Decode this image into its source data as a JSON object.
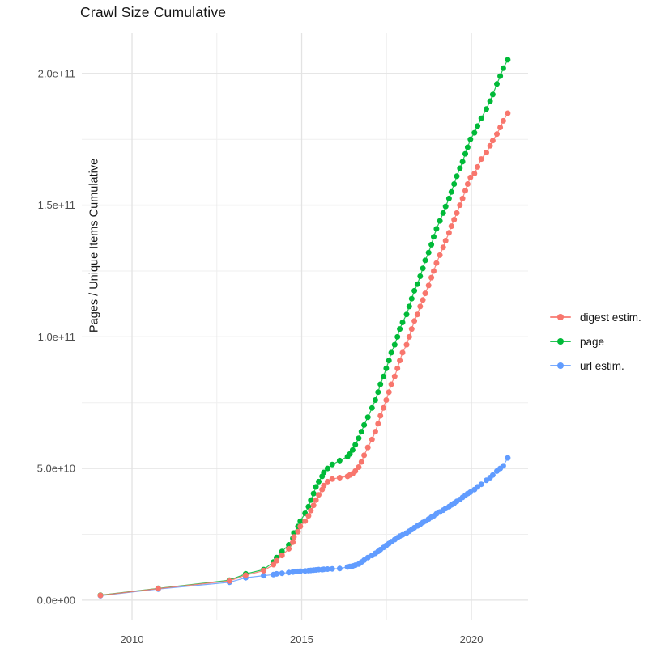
{
  "chart_data": {
    "type": "scatter",
    "title": "Crawl Size Cumulative",
    "xlabel": "",
    "ylabel": "Pages / Unique Items Cumulative",
    "grid": true,
    "legend_position": "right",
    "x_domain": [
      2008.52,
      2021.67
    ],
    "y_domain_e9": [
      -7.4,
      215.3
    ],
    "x_ticks": [
      {
        "value": 2010,
        "label": "2010"
      },
      {
        "value": 2015,
        "label": "2015"
      },
      {
        "value": 2020,
        "label": "2020"
      }
    ],
    "x_minor_gridlines": [
      2012.5,
      2017.5
    ],
    "y_ticks": [
      {
        "value_e9": 0,
        "label": "0.0e+00"
      },
      {
        "value_e9": 50,
        "label": "5.0e+10"
      },
      {
        "value_e9": 100,
        "label": "1.0e+11"
      },
      {
        "value_e9": 150,
        "label": "1.5e+11"
      },
      {
        "value_e9": 200,
        "label": "2.0e+11"
      }
    ],
    "y_minor_gridlines_e9": [
      25,
      75,
      125,
      175
    ],
    "y_value_unit": "1e9",
    "x": [
      2009.07,
      2010.77,
      2012.87,
      2013.35,
      2013.88,
      2014.17,
      2014.26,
      2014.42,
      2014.62,
      2014.74,
      2014.77,
      2014.89,
      2014.96,
      2015.1,
      2015.2,
      2015.27,
      2015.35,
      2015.42,
      2015.5,
      2015.6,
      2015.65,
      2015.76,
      2015.9,
      2016.12,
      2016.35,
      2016.42,
      2016.5,
      2016.58,
      2016.68,
      2016.76,
      2016.84,
      2016.95,
      2017.07,
      2017.17,
      2017.25,
      2017.32,
      2017.41,
      2017.49,
      2017.57,
      2017.64,
      2017.74,
      2017.82,
      2017.89,
      2017.97,
      2018.09,
      2018.17,
      2018.24,
      2018.32,
      2018.41,
      2018.49,
      2018.57,
      2018.64,
      2018.74,
      2018.82,
      2018.89,
      2018.97,
      2019.07,
      2019.17,
      2019.24,
      2019.34,
      2019.41,
      2019.49,
      2019.57,
      2019.66,
      2019.74,
      2019.82,
      2019.89,
      2019.97,
      2020.09,
      2020.18,
      2020.29,
      2020.44,
      2020.55,
      2020.63,
      2020.75,
      2020.85,
      2020.94,
      2021.07
    ],
    "series": [
      {
        "name": "digest estim.",
        "color": "#F8766D",
        "values_e9": [
          1.8,
          4.4,
          7.3,
          9.5,
          11.2,
          13.5,
          15,
          17,
          19.5,
          22,
          24,
          26,
          28,
          30,
          32,
          34,
          36,
          38,
          40,
          42,
          43.5,
          45,
          46,
          46.5,
          47,
          47.5,
          48,
          49,
          50.5,
          52.5,
          55,
          58,
          61,
          64,
          67,
          70,
          73,
          76,
          79,
          82,
          85,
          88,
          91,
          94,
          97,
          100,
          103,
          106,
          108.5,
          111.5,
          114,
          116.5,
          119.5,
          122.5,
          125,
          128,
          131,
          134,
          136.5,
          139.5,
          142,
          144.5,
          147,
          150,
          152.5,
          155.5,
          158,
          160.5,
          162,
          164.5,
          167.5,
          170,
          172.5,
          174.5,
          177,
          179.5,
          182,
          184.9
        ]
      },
      {
        "name": "page",
        "color": "#00BA38",
        "values_e9": [
          1.9,
          4.5,
          7.6,
          10,
          11.6,
          14.5,
          16.2,
          18.5,
          21,
          23.5,
          25.5,
          28,
          30,
          33,
          35.5,
          38,
          40.5,
          43,
          45,
          47,
          48.5,
          50,
          51.5,
          53,
          54.5,
          55.5,
          57,
          59,
          61.5,
          64,
          66.5,
          69.5,
          73,
          76,
          79,
          82,
          85,
          88,
          91,
          94,
          97,
          100,
          103,
          105.5,
          108.5,
          111.5,
          114.5,
          117.5,
          120,
          123,
          126,
          129,
          132,
          135,
          138,
          141,
          144,
          147,
          149.5,
          152.5,
          155,
          158,
          161,
          164,
          166.5,
          169.5,
          172,
          175,
          177.5,
          180,
          183,
          186.5,
          189.5,
          192,
          196,
          199,
          202,
          205.2
        ]
      },
      {
        "name": "url estim.",
        "color": "#619CFF",
        "values_e9": [
          1.7,
          4.2,
          6.8,
          8.5,
          9.3,
          9.7,
          10,
          10.2,
          10.5,
          10.7,
          10.8,
          10.9,
          11,
          11.1,
          11.2,
          11.3,
          11.4,
          11.5,
          11.6,
          11.6,
          11.7,
          11.8,
          11.9,
          12,
          12.6,
          12.8,
          13,
          13.3,
          13.7,
          14.5,
          15.2,
          16.2,
          17,
          17.8,
          18.5,
          19.2,
          20,
          20.8,
          21.5,
          22.2,
          23,
          23.7,
          24.3,
          24.8,
          25.5,
          26.2,
          26.8,
          27.5,
          28.2,
          28.8,
          29.5,
          30,
          30.8,
          31.5,
          32,
          32.8,
          33.5,
          34.2,
          34.8,
          35.5,
          36.2,
          36.8,
          37.5,
          38.2,
          39,
          39.8,
          40.5,
          41,
          42,
          43,
          44,
          45.5,
          46.5,
          47.5,
          49,
          50,
          51,
          54
        ]
      }
    ],
    "draw_order": [
      2,
      1,
      0
    ]
  },
  "style": {
    "grid_major_color": "#e3e3e3",
    "grid_minor_color": "#efefef",
    "tick_label_color": "#4d4d4d",
    "background": "#ffffff"
  }
}
